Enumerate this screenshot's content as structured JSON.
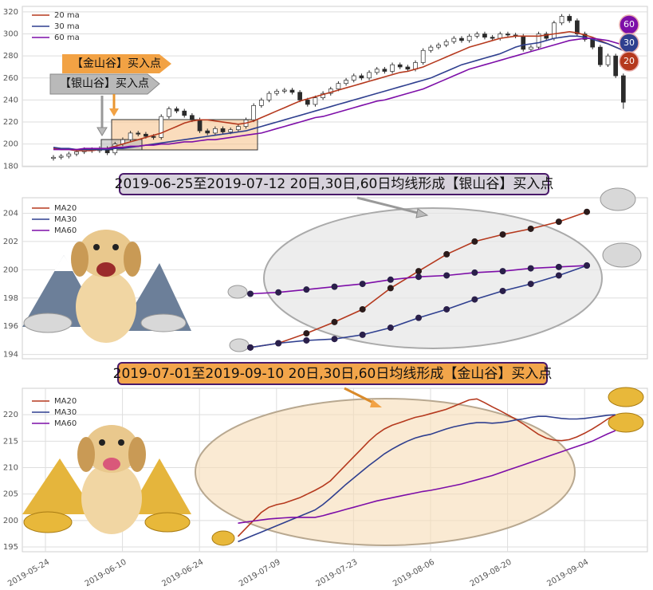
{
  "chart_data": [
    {
      "type": "candlestick",
      "annotations": [
        "【金山谷】买入点",
        "【银山谷】买入点"
      ],
      "badges": [
        "60",
        "30",
        "20"
      ],
      "ylim": [
        179.5,
        325
      ],
      "yticks": [
        180,
        200,
        220,
        240,
        260,
        280,
        300,
        320
      ],
      "grid": true,
      "candle_colors": {
        "up": "#ffffff",
        "down": "#2b2b2b",
        "edge": "#2b2b2b"
      },
      "candles": {
        "open": [
          187,
          188,
          189,
          191,
          193,
          195,
          194,
          196,
          192,
          200,
          204,
          210,
          209,
          207,
          206,
          225,
          232,
          230,
          226,
          222,
          212,
          210,
          214,
          211,
          213,
          216,
          222,
          235,
          240,
          246,
          248,
          249,
          247,
          240,
          236,
          242,
          246,
          250,
          255,
          258,
          262,
          260,
          265,
          268,
          266,
          272,
          270,
          268,
          274,
          285,
          288,
          290,
          293,
          296,
          294,
          298,
          300,
          297,
          296,
          300,
          299,
          298,
          286,
          288,
          300,
          296,
          310,
          316,
          312,
          300,
          295,
          288,
          272,
          280,
          262
        ],
        "high": [
          190,
          191,
          193,
          195,
          197,
          197,
          198,
          198,
          202,
          206,
          212,
          212,
          211,
          209,
          227,
          234,
          234,
          232,
          228,
          224,
          214,
          216,
          216,
          215,
          218,
          224,
          237,
          242,
          248,
          250,
          251,
          251,
          249,
          242,
          244,
          248,
          252,
          257,
          260,
          264,
          264,
          267,
          270,
          270,
          274,
          274,
          272,
          276,
          287,
          290,
          292,
          295,
          298,
          298,
          300,
          302,
          302,
          299,
          302,
          302,
          301,
          300,
          290,
          302,
          302,
          312,
          318,
          318,
          314,
          302,
          297,
          290,
          282,
          282,
          264
        ],
        "low": [
          185,
          186,
          187,
          189,
          191,
          192,
          192,
          190,
          190,
          198,
          202,
          207,
          205,
          204,
          204,
          223,
          228,
          224,
          220,
          210,
          208,
          208,
          209,
          209,
          211,
          214,
          220,
          233,
          238,
          244,
          246,
          245,
          238,
          234,
          234,
          240,
          244,
          248,
          253,
          256,
          258,
          258,
          263,
          264,
          264,
          268,
          266,
          266,
          272,
          283,
          286,
          288,
          291,
          292,
          292,
          296,
          295,
          294,
          294,
          297,
          296,
          284,
          284,
          286,
          294,
          294,
          308,
          310,
          298,
          293,
          286,
          270,
          270,
          260,
          232
        ],
        "close": [
          188,
          189,
          191,
          193,
          195,
          194,
          196,
          192,
          200,
          204,
          210,
          209,
          207,
          206,
          225,
          232,
          230,
          226,
          222,
          212,
          210,
          214,
          211,
          213,
          216,
          222,
          235,
          240,
          246,
          248,
          249,
          247,
          240,
          236,
          242,
          246,
          250,
          255,
          258,
          262,
          260,
          265,
          268,
          266,
          272,
          270,
          268,
          274,
          285,
          288,
          290,
          293,
          296,
          294,
          298,
          300,
          297,
          296,
          300,
          299,
          298,
          286,
          288,
          300,
          296,
          310,
          316,
          312,
          300,
          295,
          288,
          272,
          280,
          262,
          238
        ]
      },
      "series": [
        {
          "name": "20 ma",
          "color": "#b5391e",
          "values": [
            196,
            195,
            195,
            194,
            194,
            194,
            195,
            196,
            198,
            200,
            202,
            204,
            206,
            208,
            210,
            213,
            216,
            219,
            221,
            222,
            222,
            221,
            220,
            219,
            218,
            219,
            221,
            224,
            227,
            230,
            233,
            236,
            239,
            241,
            243,
            245,
            247,
            249,
            251,
            253,
            255,
            257,
            259,
            261,
            263,
            265,
            266,
            268,
            270,
            273,
            276,
            279,
            282,
            285,
            288,
            290,
            292,
            294,
            296,
            297,
            298,
            298,
            298,
            298,
            299,
            300,
            301,
            302,
            301,
            299,
            297,
            294,
            291,
            288,
            285
          ]
        },
        {
          "name": "30 ma",
          "color": "#2f3f8f",
          "values": [
            197,
            196,
            196,
            195,
            195,
            195,
            195,
            195,
            196,
            196,
            197,
            198,
            199,
            200,
            201,
            202,
            203,
            204,
            205,
            206,
            207,
            208,
            209,
            210,
            211,
            212,
            214,
            216,
            218,
            220,
            222,
            224,
            226,
            228,
            230,
            232,
            234,
            236,
            238,
            240,
            242,
            244,
            246,
            248,
            250,
            252,
            254,
            256,
            258,
            260,
            263,
            266,
            269,
            272,
            274,
            276,
            278,
            280,
            282,
            285,
            288,
            290,
            291,
            292,
            294,
            296,
            297,
            298,
            298,
            297,
            295,
            293,
            291,
            288,
            285
          ]
        },
        {
          "name": "60 ma",
          "color": "#7d0ea8",
          "values": [
            195,
            195,
            195,
            195,
            196,
            196,
            196,
            196,
            197,
            197,
            198,
            198,
            199,
            199,
            200,
            200,
            201,
            202,
            202,
            203,
            204,
            204,
            205,
            206,
            207,
            208,
            209,
            210,
            212,
            214,
            216,
            218,
            220,
            222,
            224,
            225,
            227,
            229,
            231,
            233,
            235,
            237,
            239,
            240,
            242,
            244,
            246,
            248,
            250,
            253,
            256,
            259,
            262,
            265,
            268,
            270,
            272,
            274,
            276,
            278,
            280,
            282,
            284,
            286,
            288,
            290,
            292,
            294,
            295,
            296,
            296,
            295,
            294,
            292,
            290
          ]
        }
      ]
    },
    {
      "type": "line",
      "title": "2019-06-25至2019-07-12 20日,30日,60日均线形成【银山谷】买入点",
      "ylim": [
        193.7,
        205.1
      ],
      "yticks": [
        194,
        196,
        198,
        200,
        202,
        204
      ],
      "grid": true,
      "categories": [
        null,
        null,
        null,
        null,
        null,
        null,
        null,
        null,
        null,
        null,
        null,
        null,
        null
      ],
      "series": [
        {
          "name": "MA20",
          "color": "#b5391e",
          "marker_color": "#2b1b1b",
          "values": [
            194.5,
            194.8,
            195.5,
            196.3,
            197.2,
            198.7,
            199.9,
            201.1,
            202.0,
            202.5,
            202.9,
            203.4,
            204.1
          ]
        },
        {
          "name": "MA30",
          "color": "#2f3f8f",
          "marker_color": "#2a1f4a",
          "values": [
            194.5,
            194.8,
            195.0,
            195.1,
            195.4,
            195.9,
            196.6,
            197.2,
            197.9,
            198.5,
            199.0,
            199.6,
            200.3
          ]
        },
        {
          "name": "MA60",
          "color": "#7d0ea8",
          "marker_color": "#2a1f4a",
          "values": [
            198.3,
            198.4,
            198.6,
            198.8,
            199.0,
            199.3,
            199.5,
            199.6,
            199.8,
            199.9,
            200.1,
            200.2,
            200.3
          ]
        }
      ]
    },
    {
      "type": "line",
      "title": "2019-07-01至2019-09-10 20日,30日,60日均线形成【金山谷】买入点",
      "ylim": [
        194.1,
        225
      ],
      "yticks": [
        195,
        200,
        205,
        210,
        215,
        220
      ],
      "grid": true,
      "categories": [
        "2019-05-24",
        null,
        null,
        null,
        null,
        null,
        null,
        null,
        null,
        null,
        "2019-06-10",
        null,
        null,
        null,
        null,
        null,
        null,
        null,
        null,
        null,
        "2019-06-24",
        null,
        null,
        null,
        null,
        null,
        null,
        null,
        null,
        null,
        "2019-07-09",
        null,
        null,
        null,
        null,
        null,
        null,
        null,
        null,
        null,
        "2019-07-23",
        null,
        null,
        null,
        null,
        null,
        null,
        null,
        null,
        null,
        "2019-08-06",
        null,
        null,
        null,
        null,
        null,
        null,
        null,
        null,
        null,
        "2019-08-20",
        null,
        null,
        null,
        null,
        null,
        null,
        null,
        null,
        null,
        "2019-09-04",
        null,
        null,
        null,
        null
      ],
      "series": [
        {
          "name": "MA20",
          "color": "#b5391e",
          "values": [
            null,
            null,
            null,
            null,
            null,
            null,
            null,
            null,
            null,
            null,
            null,
            null,
            null,
            null,
            null,
            null,
            null,
            null,
            null,
            null,
            null,
            null,
            null,
            null,
            null,
            197.0,
            198.5,
            200,
            201.5,
            202.5,
            203,
            203.3,
            203.8,
            204.3,
            205,
            205.7,
            206.5,
            207.5,
            209,
            210.5,
            212,
            213.5,
            215,
            216.3,
            217.3,
            218,
            218.5,
            219,
            219.5,
            219.8,
            220.2,
            220.6,
            221,
            221.6,
            222.2,
            222.8,
            223,
            222.3,
            221.5,
            220.8,
            220,
            219.2,
            218.3,
            217.3,
            216.3,
            215.6,
            215.2,
            215.1,
            215.3,
            215.8,
            216.5,
            217.3,
            218.2,
            219.2,
            220
          ]
        },
        {
          "name": "MA30",
          "color": "#2f3f8f",
          "values": [
            null,
            null,
            null,
            null,
            null,
            null,
            null,
            null,
            null,
            null,
            null,
            null,
            null,
            null,
            null,
            null,
            null,
            null,
            null,
            null,
            null,
            null,
            null,
            null,
            null,
            196,
            196.6,
            197.2,
            197.8,
            198.4,
            199,
            199.6,
            200.2,
            200.8,
            201.4,
            202,
            203,
            204.2,
            205.5,
            206.8,
            208,
            209.2,
            210.4,
            211.5,
            212.6,
            213.5,
            214.3,
            215,
            215.6,
            216,
            216.3,
            216.8,
            217.3,
            217.7,
            218,
            218.3,
            218.5,
            218.5,
            218.4,
            218.5,
            218.7,
            219,
            219.2,
            219.5,
            219.7,
            219.7,
            219.5,
            219.3,
            219.2,
            219.2,
            219.3,
            219.5,
            219.7,
            219.9,
            220
          ]
        },
        {
          "name": "MA60",
          "color": "#7d0ea8",
          "values": [
            null,
            null,
            null,
            null,
            null,
            null,
            null,
            null,
            null,
            null,
            null,
            null,
            null,
            null,
            null,
            null,
            null,
            null,
            null,
            null,
            null,
            null,
            null,
            null,
            null,
            199.5,
            199.7,
            199.9,
            200.1,
            200.3,
            200.4,
            200.5,
            200.6,
            200.6,
            200.6,
            200.6,
            200.9,
            201.3,
            201.7,
            202.1,
            202.5,
            202.9,
            203.3,
            203.7,
            204,
            204.3,
            204.6,
            204.9,
            205.2,
            205.5,
            205.7,
            206,
            206.3,
            206.6,
            206.9,
            207.3,
            207.7,
            208.1,
            208.5,
            209,
            209.5,
            210,
            210.5,
            211,
            211.5,
            212,
            212.5,
            213,
            213.5,
            214,
            214.5,
            215,
            215.7,
            216.4,
            217
          ]
        }
      ]
    }
  ]
}
